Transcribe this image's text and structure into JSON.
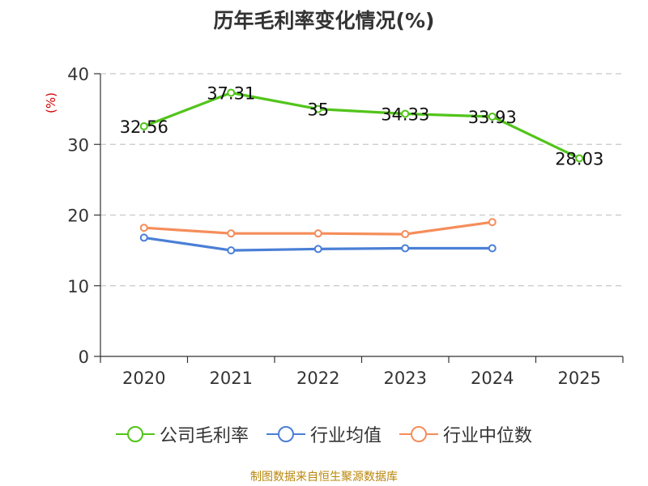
{
  "title": "历年毛利率变化情况(%)",
  "source": "制图数据来自恒生聚源数据库",
  "chart_data": {
    "type": "line",
    "title": "历年毛利率变化情况(%)",
    "ylabel": "(%)",
    "xlabel": "",
    "categories": [
      "2020",
      "2021",
      "2022",
      "2023",
      "2024",
      "2025"
    ],
    "yticks": [
      0,
      10,
      20,
      30,
      40
    ],
    "ylim": [
      0,
      40
    ],
    "grid": true,
    "legend_position": "bottom",
    "series": [
      {
        "name": "公司毛利率",
        "color": "#52c41a",
        "values": [
          32.56,
          37.31,
          35,
          34.33,
          33.93,
          28.03
        ],
        "labels": [
          "32.56",
          "37.31",
          "35",
          "34.33",
          "33.93",
          "28.03"
        ]
      },
      {
        "name": "行业均值",
        "color": "#4a7fd6",
        "values": [
          16.8,
          15.0,
          15.2,
          15.3,
          15.3,
          null
        ]
      },
      {
        "name": "行业中位数",
        "color": "#f58d5a",
        "values": [
          18.2,
          17.4,
          17.4,
          17.3,
          19.0,
          null
        ]
      }
    ]
  }
}
